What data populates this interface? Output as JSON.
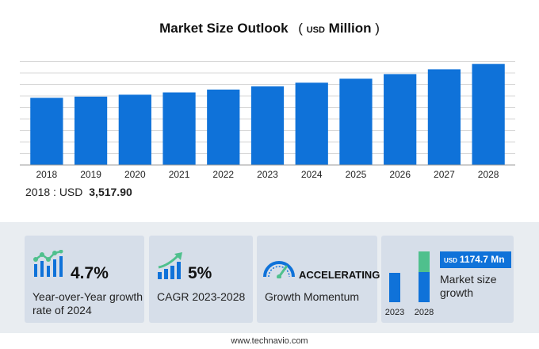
{
  "header": {
    "title": "Market Size Outlook",
    "unit_open": "(",
    "unit_currency": "USD",
    "unit_scale": "Million",
    "unit_close": ")"
  },
  "chart_data": {
    "type": "bar",
    "title": "Market Size Outlook (USD Million)",
    "categories": [
      "2018",
      "2019",
      "2020",
      "2021",
      "2022",
      "2023",
      "2024",
      "2025",
      "2026",
      "2027",
      "2028"
    ],
    "values": [
      3517.9,
      3580,
      3680,
      3800,
      3950,
      4120,
      4310,
      4520,
      4760,
      5010,
      5290
    ],
    "ylim": [
      0,
      5400
    ],
    "grid": true,
    "xlabel": "",
    "ylabel": "",
    "bar_color": "#0f72d9"
  },
  "base": {
    "prefix": "2018 : USD",
    "value": "3,517.90"
  },
  "cards": {
    "yoy": {
      "value": "4.7%",
      "desc": "Year-over-Year growth rate of 2024"
    },
    "cagr": {
      "value": "5%",
      "desc": "CAGR 2023-2028"
    },
    "momentum": {
      "value": "ACCELERATING",
      "desc": "Growth Momentum"
    },
    "growth": {
      "badge_currency": "USD",
      "badge_value": "1174.7 Mn",
      "desc": "Market size growth",
      "year_start": "2023",
      "year_end": "2028"
    }
  },
  "footer": {
    "text": "www.technavio.com"
  },
  "colors": {
    "bar": "#0f72d9",
    "growth_segment": "#4fc08d",
    "card_bg": "#d6dee9",
    "band_bg": "#e9edf1"
  }
}
